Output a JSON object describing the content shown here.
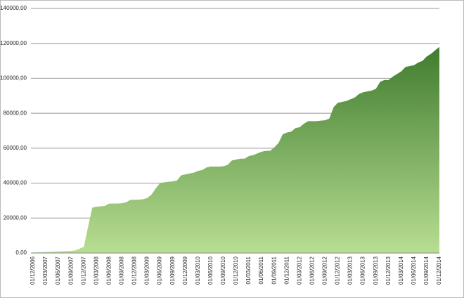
{
  "chart_data": {
    "type": "area",
    "categories": [
      "01/12/2006",
      null,
      null,
      "01/03/2007",
      null,
      null,
      "01/06/2007",
      null,
      null,
      "01/09/2007",
      null,
      null,
      "01/12/2007",
      null,
      null,
      "01/03/2008",
      null,
      null,
      "01/06/2008",
      null,
      null,
      "01/09/2008",
      null,
      null,
      "01/12/2008",
      null,
      null,
      "01/03/2009",
      null,
      null,
      "01/06/2009",
      null,
      null,
      "01/09/2009",
      null,
      null,
      "01/12/2009",
      null,
      null,
      "01/03/2010",
      null,
      null,
      "01/06/2010",
      null,
      null,
      "01/09/2010",
      null,
      null,
      "01/12/2010",
      null,
      null,
      "01/03/2011",
      null,
      null,
      "01/06/2011",
      null,
      null,
      "01/09/2011",
      null,
      null,
      "01/12/2011",
      null,
      null,
      "01/03/2012",
      null,
      null,
      "01/06/2012",
      null,
      null,
      "01/09/2012",
      null,
      null,
      "01/12/2012",
      null,
      null,
      "01/03/2013",
      null,
      null,
      "01/06/2013",
      null,
      null,
      "01/09/2013",
      null,
      null,
      "01/12/2013",
      null,
      null,
      "01/03/2014",
      null,
      null,
      "01/06/2014",
      null,
      null,
      "01/09/2014",
      null,
      null,
      "01/12/2014"
    ],
    "values": [
      300,
      400,
      500,
      600,
      700,
      800,
      900,
      1000,
      1100,
      1200,
      1500,
      2500,
      3500,
      15000,
      26000,
      26500,
      26700,
      27000,
      28300,
      28300,
      28300,
      28500,
      29000,
      30500,
      30500,
      30600,
      30800,
      31500,
      33500,
      37000,
      40000,
      40500,
      40800,
      41000,
      41500,
      44500,
      45000,
      45500,
      46000,
      47000,
      47500,
      49000,
      49500,
      49500,
      49500,
      49700,
      50500,
      53000,
      53500,
      54000,
      54000,
      55500,
      56000,
      57000,
      58000,
      58500,
      58500,
      60500,
      63000,
      68000,
      69000,
      69500,
      71500,
      72000,
      74000,
      75500,
      75500,
      75500,
      75800,
      76000,
      77000,
      83500,
      86000,
      86500,
      87000,
      88000,
      89000,
      91000,
      92000,
      92500,
      93000,
      94000,
      98000,
      99000,
      99000,
      101000,
      102500,
      104000,
      106500,
      107000,
      107500,
      109000,
      110000,
      112500,
      114000,
      116000,
      118000
    ],
    "colors": [
      "#b8de92",
      "#2a6a1c"
    ],
    "ylim": [
      0,
      140000
    ],
    "yticks": [
      {
        "value": 0,
        "label": "0,00"
      },
      {
        "value": 20000,
        "label": "20000,00"
      },
      {
        "value": 40000,
        "label": "40000,00"
      },
      {
        "value": 60000,
        "label": "60000,00"
      },
      {
        "value": 80000,
        "label": "80000,00"
      },
      {
        "value": 100000,
        "label": "100000,00"
      },
      {
        "value": 120000,
        "label": "120000,00"
      },
      {
        "value": 140000,
        "label": "140000,00"
      }
    ],
    "grid": true
  }
}
